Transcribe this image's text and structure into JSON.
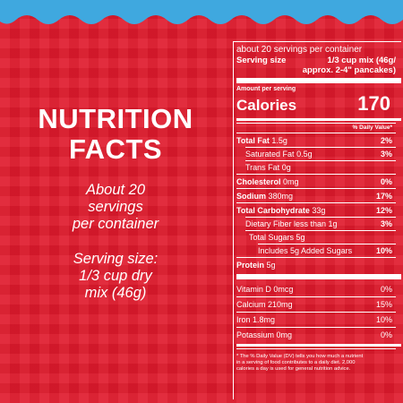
{
  "colors": {
    "background": "#e01a2c",
    "wave": "#3fa8df",
    "text": "#ffffff"
  },
  "left": {
    "heading_lines": [
      "NUTRITION",
      "FACTS"
    ],
    "servings_lines": [
      "About 20",
      "servings",
      "per container"
    ],
    "serving_size_lines": [
      "Serving size:",
      "1/3 cup dry",
      "mix (46g)"
    ]
  },
  "panel": {
    "servings_per_container": "about 20 servings per container",
    "serving_size_label": "Serving size",
    "serving_size_value_lines": [
      "1/3 cup mix (46g/",
      "approx. 2-4\" pancakes)"
    ],
    "amount_per_serving": "Amount per serving",
    "calories_label": "Calories",
    "calories_value": "170",
    "dv_header": "% Daily Value*",
    "nutrients": [
      {
        "label": "Total Fat",
        "amount": "1.5g",
        "dv": "2%"
      },
      {
        "label": "Saturated Fat",
        "amount": "0.5g",
        "dv": "3%"
      },
      {
        "label": "Trans Fat",
        "amount": "0g",
        "dv": ""
      },
      {
        "label": "Cholesterol",
        "amount": "0mg",
        "dv": "0%"
      },
      {
        "label": "Sodium",
        "amount": "380mg",
        "dv": "17%"
      },
      {
        "label": "Total Carbohydrate",
        "amount": "33g",
        "dv": "12%"
      },
      {
        "label": "Dietary Fiber",
        "amount": "less than 1g",
        "dv": "3%"
      },
      {
        "label": "Total Sugars",
        "amount": "5g",
        "dv": ""
      },
      {
        "label": "Includes 5g Added Sugars",
        "amount": "",
        "dv": "10%"
      },
      {
        "label": "Protein",
        "amount": "5g",
        "dv": ""
      }
    ],
    "vitamins": [
      {
        "label": "Vitamin D",
        "amount": "0mcg",
        "dv": "0%"
      },
      {
        "label": "Calcium",
        "amount": "210mg",
        "dv": "15%"
      },
      {
        "label": "Iron",
        "amount": "1.8mg",
        "dv": "10%"
      },
      {
        "label": "Potassium",
        "amount": "0mg",
        "dv": "0%"
      }
    ],
    "footnote_lines": [
      "* The % Daily Value (DV) tells you how much a nutrient",
      "in a serving of food contributes to a daily diet. 2,000",
      "calories a day is used for general nutrition advice."
    ]
  }
}
